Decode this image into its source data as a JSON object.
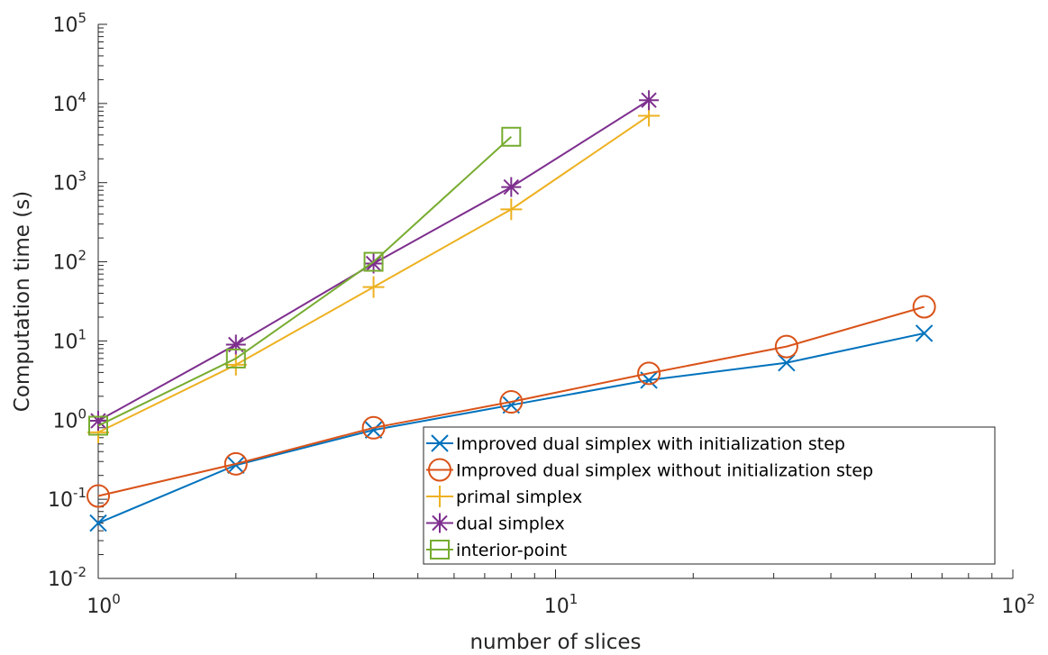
{
  "chart_data": {
    "type": "line",
    "xlabel": "number of slices",
    "ylabel": "Computation time (s)",
    "xscale": "log",
    "yscale": "log",
    "xlim": [
      1,
      100
    ],
    "ylim": [
      0.01,
      100000
    ],
    "grid": false,
    "legend_position": "bottom-right",
    "x_ticks": [
      {
        "base": "10",
        "exp": "0",
        "value": 1
      },
      {
        "base": "10",
        "exp": "1",
        "value": 10
      },
      {
        "base": "10",
        "exp": "2",
        "value": 100
      }
    ],
    "y_ticks": [
      {
        "base": "10",
        "exp": "-2",
        "value": 0.01
      },
      {
        "base": "10",
        "exp": "-1",
        "value": 0.1
      },
      {
        "base": "10",
        "exp": "0",
        "value": 1
      },
      {
        "base": "10",
        "exp": "1",
        "value": 10
      },
      {
        "base": "10",
        "exp": "2",
        "value": 100
      },
      {
        "base": "10",
        "exp": "3",
        "value": 1000
      },
      {
        "base": "10",
        "exp": "4",
        "value": 10000
      },
      {
        "base": "10",
        "exp": "5",
        "value": 100000
      }
    ],
    "series": [
      {
        "name": "Improved dual simplex with initialization step",
        "color": "#0072BD",
        "marker": "x",
        "points": [
          [
            1,
            0.05
          ],
          [
            2,
            0.27
          ],
          [
            4,
            0.75
          ],
          [
            8,
            1.55
          ],
          [
            16,
            3.2
          ],
          [
            32,
            5.3
          ],
          [
            64,
            12.5
          ]
        ]
      },
      {
        "name": "Improved dual simplex without initialization step",
        "color": "#D95319",
        "marker": "circle",
        "points": [
          [
            1,
            0.11
          ],
          [
            2,
            0.28
          ],
          [
            4,
            0.8
          ],
          [
            8,
            1.7
          ],
          [
            16,
            3.9
          ],
          [
            32,
            8.5
          ],
          [
            64,
            27
          ]
        ]
      },
      {
        "name": "primal simplex",
        "color": "#EDB120",
        "marker": "plus",
        "points": [
          [
            1,
            0.7
          ],
          [
            2,
            5.0
          ],
          [
            4,
            48
          ],
          [
            8,
            460
          ],
          [
            16,
            7000
          ]
        ]
      },
      {
        "name": "dual simplex",
        "color": "#7E2F8E",
        "marker": "star",
        "points": [
          [
            1,
            0.98
          ],
          [
            2,
            9.0
          ],
          [
            4,
            95
          ],
          [
            8,
            880
          ],
          [
            16,
            11000
          ]
        ]
      },
      {
        "name": "interior-point",
        "color": "#77AC30",
        "marker": "square",
        "points": [
          [
            1,
            0.85
          ],
          [
            2,
            6.0
          ],
          [
            4,
            100
          ],
          [
            8,
            3800
          ]
        ]
      }
    ]
  }
}
